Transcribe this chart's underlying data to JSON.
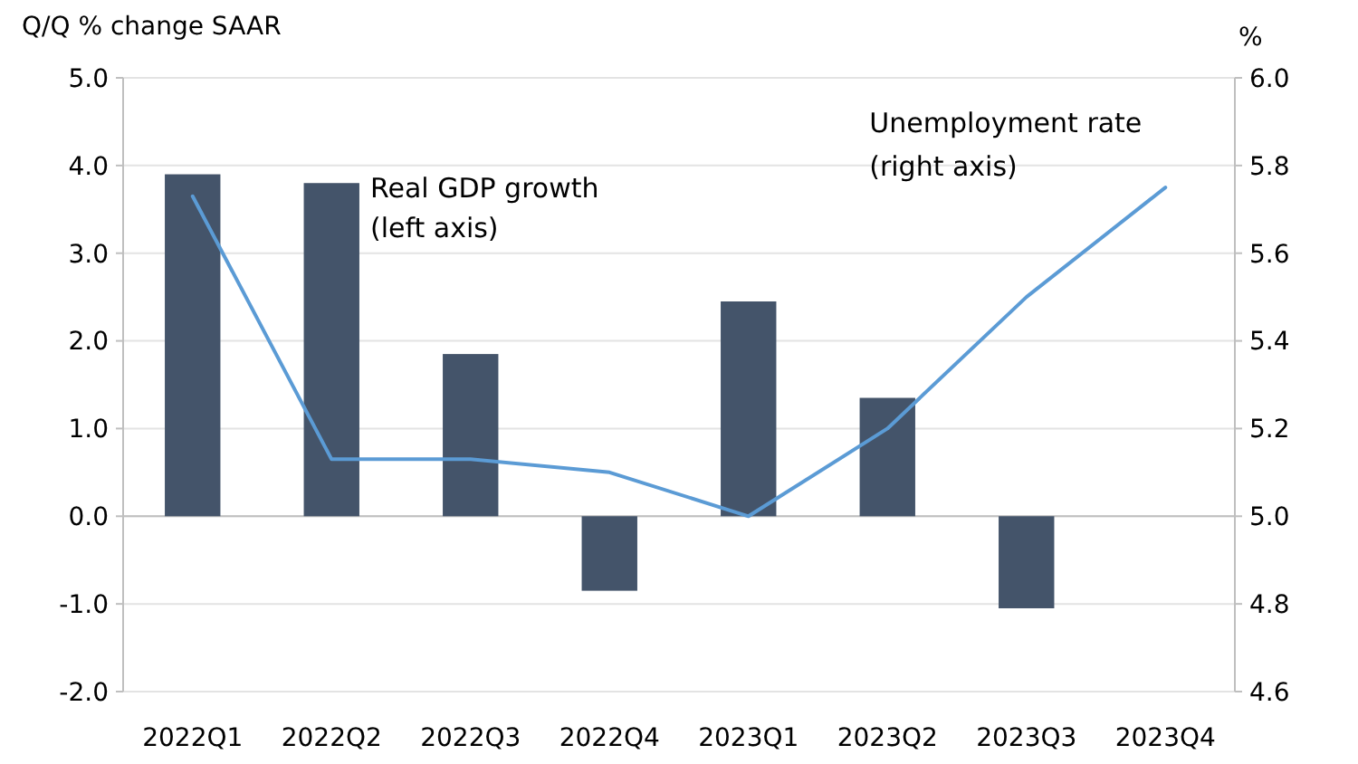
{
  "chart_data": {
    "type": "bar",
    "ylabel": "Q/Q % change SAAR",
    "y2label": "%",
    "categories": [
      "2022Q1",
      "2022Q2",
      "2022Q3",
      "2022Q4",
      "2023Q1",
      "2023Q2",
      "2023Q3",
      "2023Q4"
    ],
    "series": [
      {
        "name": "Real GDP growth (left axis)",
        "color": "#44546a",
        "values": [
          3.9,
          3.8,
          1.85,
          -0.85,
          2.45,
          1.35,
          -1.05,
          null
        ]
      },
      {
        "name": "Unemployment rate (right axis)",
        "type": "line",
        "axis": "y2",
        "color": "#5b9bd5",
        "values": [
          5.73,
          5.13,
          5.13,
          5.1,
          5.0,
          5.2,
          5.5,
          5.75
        ]
      }
    ],
    "ylim": [
      -2,
      5
    ],
    "yticks": [
      {
        "value": -2,
        "label": "-2.0"
      },
      {
        "value": -1,
        "label": "-1.0"
      },
      {
        "value": 0,
        "label": "0.0"
      },
      {
        "value": 1,
        "label": "1.0"
      },
      {
        "value": 2,
        "label": "2.0"
      },
      {
        "value": 3,
        "label": "3.0"
      },
      {
        "value": 4,
        "label": "4.0"
      },
      {
        "value": 5,
        "label": "5.0"
      }
    ],
    "y2lim": [
      4.6,
      6
    ],
    "y2ticks": [
      {
        "value": 4.6,
        "label": "4.6"
      },
      {
        "value": 4.8,
        "label": "4.8"
      },
      {
        "value": 5,
        "label": "5.0"
      },
      {
        "value": 5.2,
        "label": "5.2"
      },
      {
        "value": 5.4,
        "label": "5.4"
      },
      {
        "value": 5.6,
        "label": "5.6"
      },
      {
        "value": 5.8,
        "label": "5.8"
      },
      {
        "value": 6,
        "label": "6.0"
      }
    ],
    "grid": "y"
  }
}
